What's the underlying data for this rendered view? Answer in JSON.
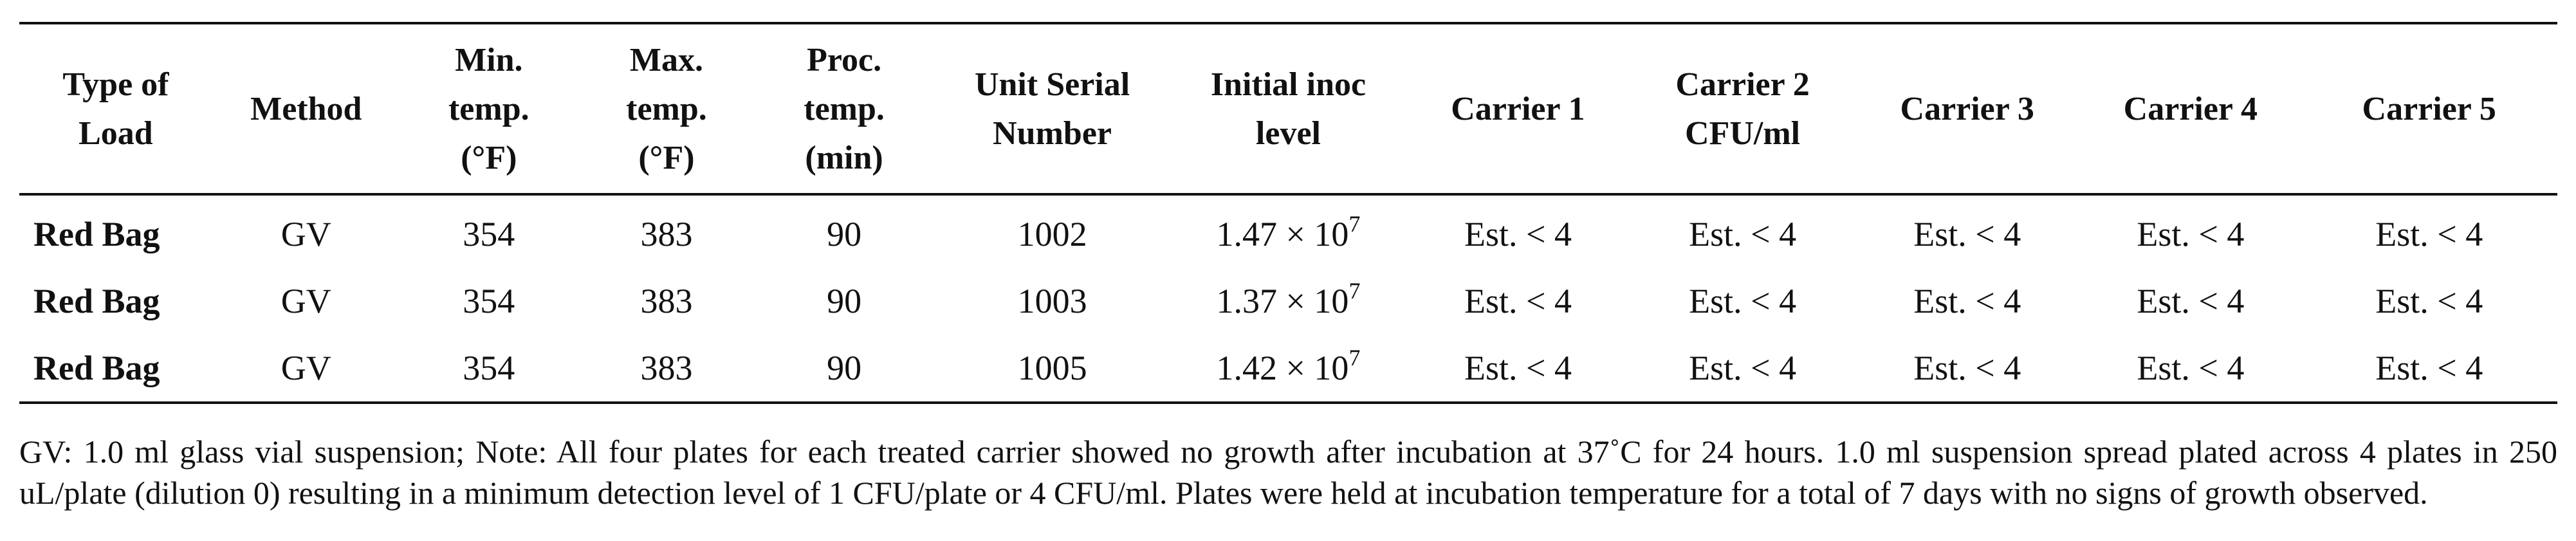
{
  "table": {
    "headers": [
      [
        "Type of",
        "Load"
      ],
      [
        "Method"
      ],
      [
        "Min.",
        "temp.",
        "(°F)"
      ],
      [
        "Max.",
        "temp.",
        "(°F)"
      ],
      [
        "Proc.",
        "temp.",
        "(min)"
      ],
      [
        "Unit Serial",
        "Number"
      ],
      [
        "Initial inoc",
        "level"
      ],
      [
        "Carrier 1"
      ],
      [
        "Carrier 2",
        "CFU/ml"
      ],
      [
        "Carrier 3"
      ],
      [
        "Carrier 4"
      ],
      [
        "Carrier 5"
      ]
    ],
    "rows": [
      {
        "type_of_load": "Red Bag",
        "method": "GV",
        "min_temp": "354",
        "max_temp": "383",
        "proc_temp": "90",
        "unit_serial": "1002",
        "inoc_mantissa": "1.47 × 10",
        "inoc_exponent": "7",
        "carrier_1": "Est. < 4",
        "carrier_2": "Est. < 4",
        "carrier_3": "Est. < 4",
        "carrier_4": "Est. < 4",
        "carrier_5": "Est. < 4"
      },
      {
        "type_of_load": "Red Bag",
        "method": "GV",
        "min_temp": "354",
        "max_temp": "383",
        "proc_temp": "90",
        "unit_serial": "1003",
        "inoc_mantissa": "1.37 × 10",
        "inoc_exponent": "7",
        "carrier_1": "Est. < 4",
        "carrier_2": "Est. < 4",
        "carrier_3": "Est. < 4",
        "carrier_4": "Est. < 4",
        "carrier_5": "Est. < 4"
      },
      {
        "type_of_load": "Red Bag",
        "method": "GV",
        "min_temp": "354",
        "max_temp": "383",
        "proc_temp": "90",
        "unit_serial": "1005",
        "inoc_mantissa": "1.42 × 10",
        "inoc_exponent": "7",
        "carrier_1": "Est. < 4",
        "carrier_2": "Est. < 4",
        "carrier_3": "Est. < 4",
        "carrier_4": "Est. < 4",
        "carrier_5": "Est. < 4"
      }
    ]
  },
  "footnote": "GV: 1.0 ml glass vial suspension; Note: All four plates for each treated carrier showed no growth after incubation at 37˚C for 24 hours. 1.0 ml suspension spread plated across 4 plates in 250 uL/plate (dilution 0) resulting in a minimum detection level of 1 CFU/plate or 4 CFU/ml. Plates were held at incubation temperature for a total of 7 days with no signs of growth observed."
}
